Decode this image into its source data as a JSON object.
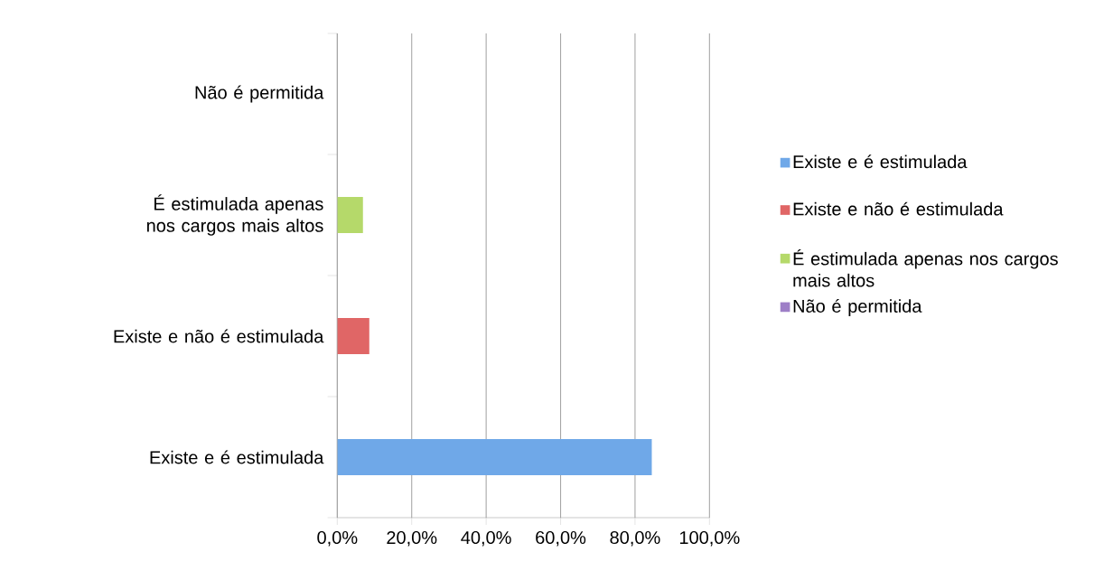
{
  "chart_data": {
    "type": "bar",
    "orientation": "horizontal",
    "categories": [
      "Não é permitida",
      "É estimulada apenas nos cargos mais altos",
      "Existe e não é estimulada",
      "Existe e é estimulada"
    ],
    "series": [
      {
        "name": "Existe e é estimulada",
        "color": "#6fa8e8",
        "values": [
          null,
          null,
          null,
          84.5
        ]
      },
      {
        "name": "Existe e não é estimulada",
        "color": "#e06666",
        "values": [
          null,
          null,
          8.6,
          null
        ]
      },
      {
        "name": "É estimulada apenas nos cargos mais altos",
        "color": "#b5d96a",
        "values": [
          null,
          6.9,
          null,
          null
        ]
      },
      {
        "name": "Não é permitida",
        "color": "#9e7fc7",
        "values": [
          0,
          null,
          null,
          null
        ]
      }
    ],
    "xlim": [
      0,
      100
    ],
    "xticks": [
      {
        "value": 0,
        "label": "0,0%"
      },
      {
        "value": 20,
        "label": "20,0%"
      },
      {
        "value": 40,
        "label": "40,0%"
      },
      {
        "value": 60,
        "label": "60,0%"
      },
      {
        "value": 80,
        "label": "80,0%"
      },
      {
        "value": 100,
        "label": "100,0%"
      }
    ],
    "grid": "x",
    "legend": "right"
  }
}
